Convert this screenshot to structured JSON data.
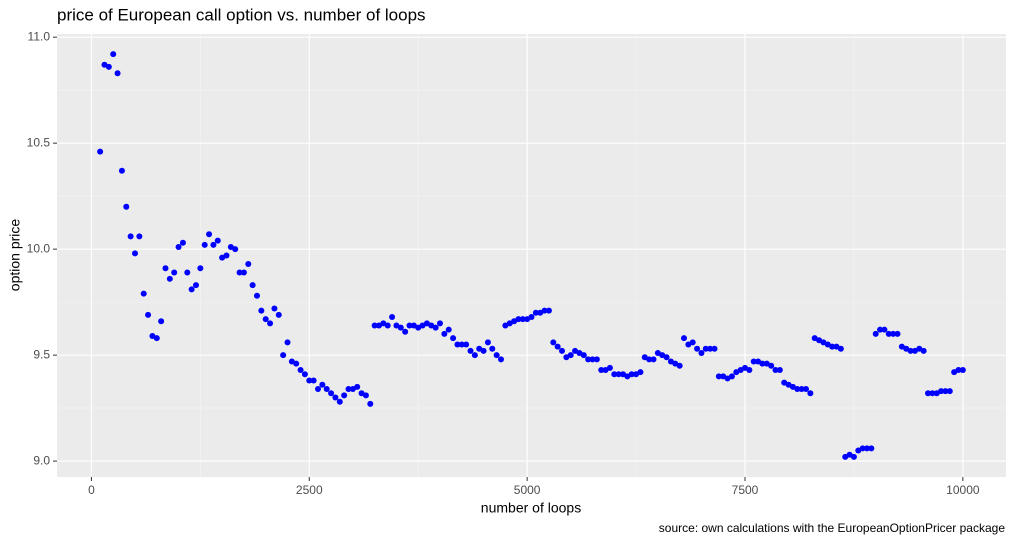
{
  "chart_data": {
    "type": "scatter",
    "title": "price of European call option vs. number of loops",
    "x_label": "number of loops",
    "y_label": "option price",
    "caption": "source: own calculations with the EuropeanOptionPricer package",
    "color": "#0000ff",
    "grid": true,
    "xlim": [
      -395,
      10495
    ],
    "ylim": [
      8.925,
      11.015
    ],
    "xticks": [
      0,
      2500,
      5000,
      7500,
      10000
    ],
    "yticks": [
      {
        "value": 9,
        "label": "9.0"
      },
      9.5,
      {
        "value": 10,
        "label": "10.0"
      },
      10.5,
      {
        "value": 11,
        "label": "11.0"
      }
    ],
    "x": [
      100,
      150,
      200,
      250,
      300,
      350,
      400,
      450,
      500,
      550,
      600,
      650,
      700,
      750,
      800,
      850,
      900,
      950,
      1000,
      1050,
      1100,
      1150,
      1200,
      1250,
      1300,
      1350,
      1400,
      1450,
      1500,
      1550,
      1600,
      1650,
      1700,
      1750,
      1800,
      1850,
      1900,
      1950,
      2000,
      2050,
      2100,
      2150,
      2200,
      2250,
      2300,
      2350,
      2400,
      2450,
      2500,
      2550,
      2600,
      2650,
      2700,
      2750,
      2800,
      2850,
      2900,
      2950,
      3000,
      3050,
      3100,
      3150,
      3200,
      3250,
      3300,
      3350,
      3400,
      3450,
      3500,
      3550,
      3600,
      3650,
      3700,
      3750,
      3800,
      3850,
      3900,
      3950,
      4000,
      4050,
      4100,
      4150,
      4200,
      4250,
      4300,
      4350,
      4400,
      4450,
      4500,
      4550,
      4600,
      4650,
      4700,
      4750,
      4800,
      4850,
      4900,
      4950,
      5000,
      5050,
      5100,
      5150,
      5200,
      5250,
      5300,
      5350,
      5400,
      5450,
      5500,
      5550,
      5600,
      5650,
      5700,
      5750,
      5800,
      5850,
      5900,
      5950,
      6000,
      6050,
      6100,
      6150,
      6200,
      6250,
      6300,
      6350,
      6400,
      6450,
      6500,
      6550,
      6600,
      6650,
      6700,
      6750,
      6800,
      6850,
      6900,
      6950,
      7000,
      7050,
      7100,
      7150,
      7200,
      7250,
      7300,
      7350,
      7400,
      7450,
      7500,
      7550,
      7600,
      7650,
      7700,
      7750,
      7800,
      7850,
      7900,
      7950,
      8000,
      8050,
      8100,
      8150,
      8200,
      8250,
      8300,
      8350,
      8400,
      8450,
      8500,
      8550,
      8600,
      8650,
      8700,
      8750,
      8800,
      8850,
      8900,
      8950,
      9000,
      9050,
      9100,
      9150,
      9200,
      9250,
      9300,
      9350,
      9400,
      9450,
      9500,
      9550,
      9600,
      9650,
      9700,
      9750,
      9800,
      9850,
      9900,
      9950,
      10000
    ],
    "values": [
      10.46,
      10.87,
      10.86,
      10.92,
      10.83,
      10.37,
      10.2,
      10.06,
      9.98,
      10.06,
      9.79,
      9.69,
      9.59,
      9.58,
      9.66,
      9.91,
      9.86,
      9.89,
      10.01,
      10.03,
      9.89,
      9.81,
      9.83,
      9.91,
      10.02,
      10.07,
      10.02,
      10.04,
      9.96,
      9.97,
      10.01,
      10.0,
      9.89,
      9.89,
      9.93,
      9.83,
      9.78,
      9.71,
      9.67,
      9.65,
      9.72,
      9.69,
      9.5,
      9.56,
      9.47,
      9.46,
      9.43,
      9.41,
      9.38,
      9.38,
      9.34,
      9.36,
      9.34,
      9.32,
      9.3,
      9.28,
      9.31,
      9.34,
      9.34,
      9.35,
      9.32,
      9.31,
      9.27,
      9.64,
      9.64,
      9.65,
      9.64,
      9.68,
      9.64,
      9.63,
      9.61,
      9.64,
      9.64,
      9.63,
      9.64,
      9.65,
      9.64,
      9.63,
      9.65,
      9.6,
      9.62,
      9.58,
      9.55,
      9.55,
      9.55,
      9.52,
      9.5,
      9.53,
      9.52,
      9.56,
      9.53,
      9.5,
      9.48,
      9.64,
      9.65,
      9.66,
      9.67,
      9.67,
      9.67,
      9.68,
      9.7,
      9.7,
      9.71,
      9.71,
      9.56,
      9.54,
      9.52,
      9.49,
      9.5,
      9.52,
      9.51,
      9.5,
      9.48,
      9.48,
      9.48,
      9.43,
      9.43,
      9.44,
      9.41,
      9.41,
      9.41,
      9.4,
      9.41,
      9.41,
      9.42,
      9.49,
      9.48,
      9.48,
      9.51,
      9.5,
      9.49,
      9.47,
      9.46,
      9.45,
      9.58,
      9.55,
      9.56,
      9.53,
      9.51,
      9.53,
      9.53,
      9.53,
      9.4,
      9.4,
      9.39,
      9.4,
      9.42,
      9.43,
      9.44,
      9.43,
      9.47,
      9.47,
      9.46,
      9.46,
      9.45,
      9.43,
      9.43,
      9.37,
      9.36,
      9.35,
      9.34,
      9.34,
      9.34,
      9.32,
      9.58,
      9.57,
      9.56,
      9.55,
      9.54,
      9.54,
      9.53,
      9.02,
      9.03,
      9.02,
      9.05,
      9.06,
      9.06,
      9.06,
      9.6,
      9.62,
      9.62,
      9.6,
      9.6,
      9.6,
      9.54,
      9.53,
      9.52,
      9.52,
      9.53,
      9.52,
      9.32,
      9.32,
      9.32,
      9.33,
      9.33,
      9.33,
      9.42,
      9.43,
      9.43
    ]
  }
}
